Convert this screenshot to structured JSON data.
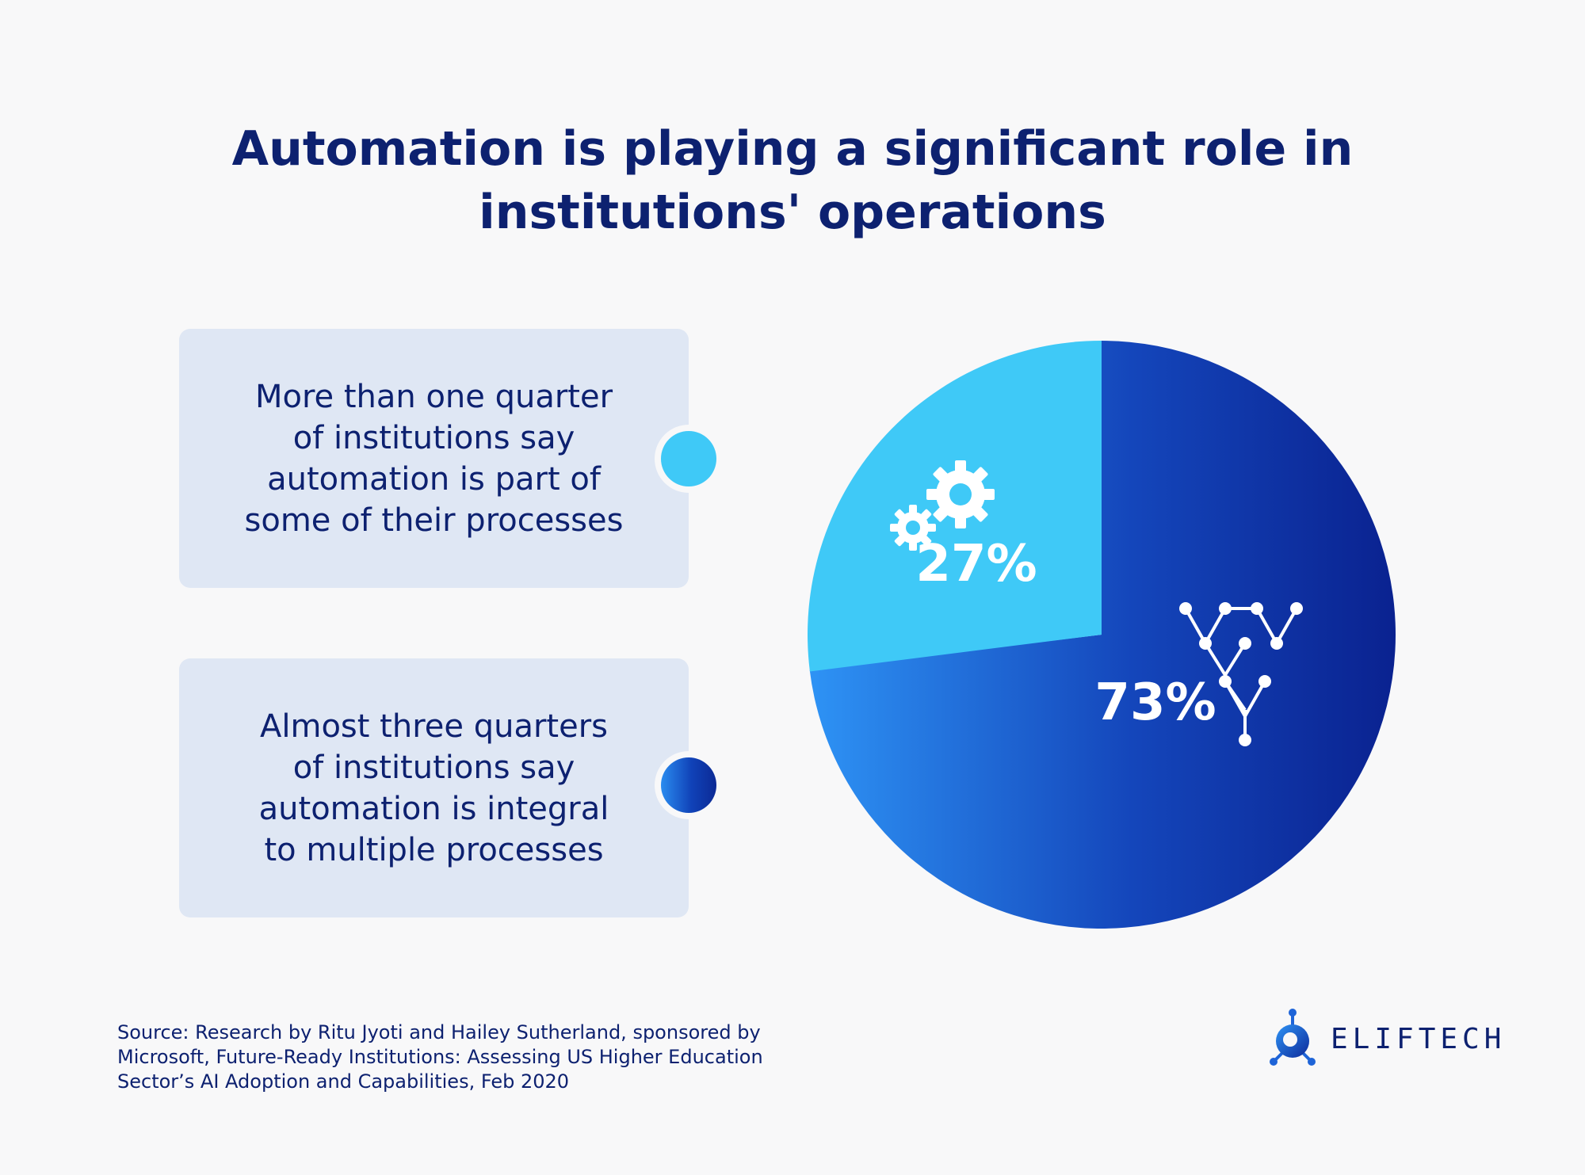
{
  "title": {
    "line1": "Automation is playing a significant role in",
    "line2": "institutions' operations"
  },
  "cards": [
    {
      "lines": [
        "More than one quarter",
        "of institutions say",
        "automation is part of",
        "some of their processes"
      ],
      "color": "#3fc9f7"
    },
    {
      "lines": [
        "Almost three quarters",
        "of institutions say",
        "automation is integral",
        "to multiple processes"
      ],
      "color": "#1042b8"
    }
  ],
  "chart_data": {
    "type": "pie",
    "title": "Automation is playing a significant role in institutions' operations",
    "categories": [
      "More than one quarter of institutions say automation is part of some of their processes",
      "Almost three quarters of institutions say automation is integral to multiple processes"
    ],
    "values": [
      27,
      73
    ],
    "labels": [
      "27%",
      "73%"
    ],
    "colors": [
      "#3fc9f7",
      "#1042b8"
    ],
    "icons": [
      "gears-icon",
      "network-tree-icon"
    ]
  },
  "source": {
    "lines": [
      "Source: Research by Ritu Jyoti and Hailey Sutherland, sponsored by",
      "Microsoft, Future-Ready Institutions: Assessing US Higher Education",
      "Sector’s AI Adoption and Capabilities, Feb 2020"
    ]
  },
  "logo": {
    "text": "ELIFTECH",
    "icon": "eliftech-logo-icon"
  }
}
